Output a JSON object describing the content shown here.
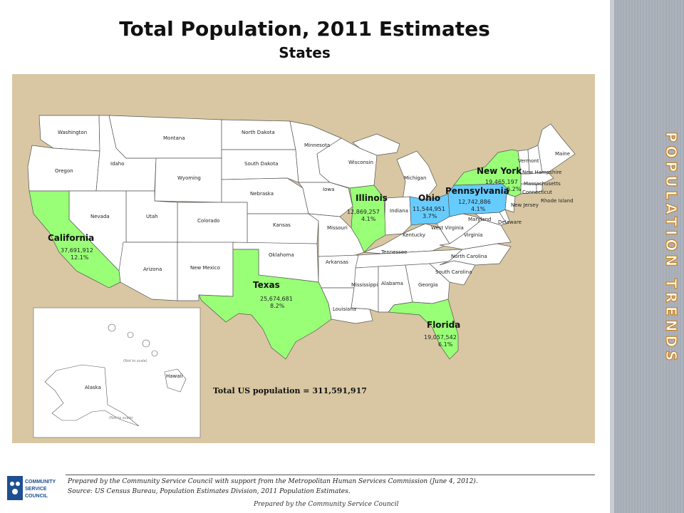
{
  "title": "Total Population, 2011 Estimates",
  "subtitle": "States",
  "side_title": "POPULATION TRENDS",
  "colors": {
    "highlight_green": "#99ff77",
    "highlight_blue": "#66ccff",
    "land": "#ffffff",
    "background": "#d8c7a2",
    "side_title": "#c9821f"
  },
  "states": {
    "washington": "Washington",
    "oregon": "Oregon",
    "idaho": "Idaho",
    "montana": "Montana",
    "wyoming": "Wyoming",
    "north_dakota": "North Dakota",
    "south_dakota": "South Dakota",
    "nebraska": "Nebraska",
    "kansas": "Kansas",
    "colorado": "Colorado",
    "utah": "Utah",
    "nevada": "Nevada",
    "arizona": "Arizona",
    "new_mexico": "New Mexico",
    "oklahoma": "Oklahoma",
    "minnesota": "Minnesota",
    "iowa": "Iowa",
    "missouri": "Missouri",
    "arkansas": "Arkansas",
    "louisiana": "Louisiana",
    "wisconsin": "Wisconsin",
    "michigan": "Michigan",
    "indiana": "Indiana",
    "kentucky": "Kentucky",
    "tennessee": "Tennessee",
    "mississippi": "Mississippi",
    "alabama": "Alabama",
    "georgia": "Georgia",
    "south_carolina": "South Carolina",
    "north_carolina": "North Carolina",
    "virginia": "Virginia",
    "west_virginia": "West Virginia",
    "maryland": "Maryland",
    "delaware": "Delaware",
    "new_jersey": "New Jersey",
    "connecticut": "Connecticut",
    "rhode_island": "Rhode Island",
    "massachusetts": "Massachusetts",
    "vermont": "Vermont",
    "new_hampshire": "New Hampshire",
    "maine": "Maine",
    "alaska": "Alaska",
    "hawaii": "Hawaii"
  },
  "highlighted": {
    "california": {
      "name": "California",
      "population": "37,691,912",
      "percent": "12.1%"
    },
    "texas": {
      "name": "Texas",
      "population": "25,674,681",
      "percent": "8.2%"
    },
    "new_york": {
      "name": "New York",
      "population": "19,465,197",
      "percent": "6.2%"
    },
    "florida": {
      "name": "Florida",
      "population": "19,057,542",
      "percent": "6.1%"
    },
    "illinois": {
      "name": "Illinois",
      "population": "12,869,257",
      "percent": "4.1%"
    },
    "pennsylvania": {
      "name": "Pennsylvania",
      "population": "12,742,886",
      "percent": "4.1%"
    },
    "ohio": {
      "name": "Ohio",
      "population": "11,544,951",
      "percent": "3.7%"
    }
  },
  "not_to_scale": "(Not to scale)",
  "total": "Total US population = 311,591,917",
  "logo": {
    "line1": "COMMUNITY",
    "line2": "SERVICE",
    "line3": "COUNCIL"
  },
  "footer": {
    "line1": "Prepared by the Community Service Council with support from the Metropolitan Human Services Commission (June 4, 2012).",
    "line2": "Source:  US Census Bureau, Population Estimates Division, 2011 Population Estimates.",
    "prepared": "Prepared by the Community Service Council"
  }
}
